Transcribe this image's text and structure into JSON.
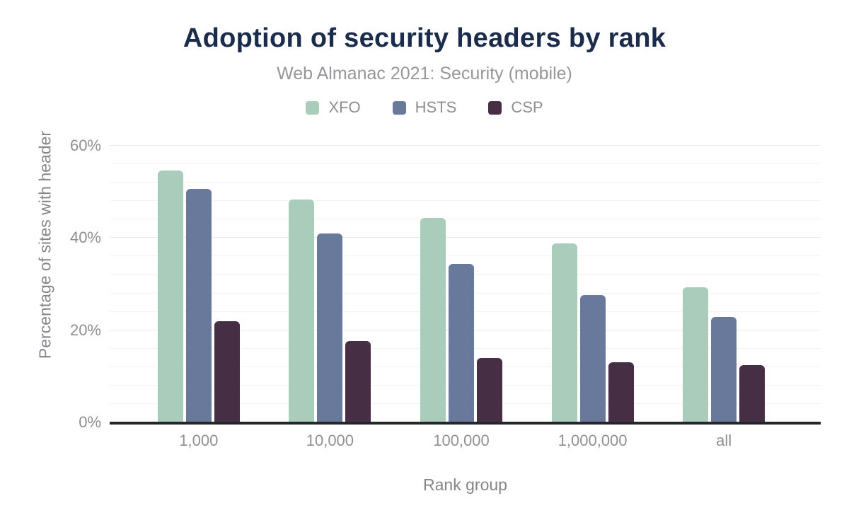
{
  "chart_data": {
    "type": "bar",
    "title": "Adoption of security headers by rank",
    "subtitle": "Web Almanac 2021: Security (mobile)",
    "xlabel": "Rank group",
    "ylabel": "Percentage of sites with header",
    "categories": [
      "1,000",
      "10,000",
      "100,000",
      "1,000,000",
      "all"
    ],
    "series": [
      {
        "name": "XFO",
        "color": "#a9ccbb",
        "values": [
          54.6,
          48.3,
          44.3,
          38.8,
          29.3
        ]
      },
      {
        "name": "HSTS",
        "color": "#68799b",
        "values": [
          50.7,
          41.0,
          34.4,
          27.7,
          22.8
        ]
      },
      {
        "name": "CSP",
        "color": "#462e44",
        "values": [
          21.9,
          17.6,
          14.0,
          13.0,
          12.4
        ]
      }
    ],
    "ylim": [
      0,
      60
    ],
    "yticks": [
      {
        "label": "0%",
        "value": 0
      },
      {
        "label": "20%",
        "value": 20
      },
      {
        "label": "40%",
        "value": 40
      },
      {
        "label": "60%",
        "value": 60
      }
    ],
    "grid": {
      "minor_step": 4,
      "major_step": 20,
      "minor_color": "#f3f3f3",
      "major_color": "#e9e9e9"
    },
    "legend_position": "top",
    "colors": {
      "title": "#1b2b4b",
      "subtitle_text": "#96969b",
      "axis_text": "#8e8e93",
      "axis_title_text": "#85858a",
      "baseline": "#23262c",
      "background": "#ffffff"
    }
  }
}
